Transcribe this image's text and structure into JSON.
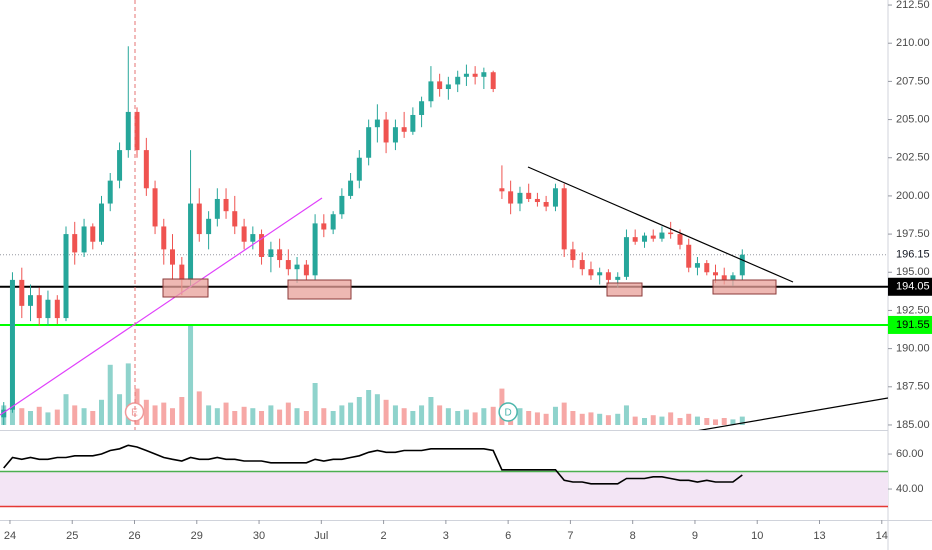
{
  "chart_data": {
    "type": "candlestick",
    "x": [
      -0.1,
      0.04,
      0.19,
      0.33,
      0.47,
      0.61,
      0.76,
      0.9,
      1.04,
      1.19,
      1.33,
      1.47,
      1.61,
      1.76,
      1.9,
      2.04,
      2.19,
      2.33,
      2.47,
      2.61,
      2.76,
      2.9,
      3.04,
      3.19,
      3.33,
      3.47,
      3.61,
      3.76,
      3.9,
      4.04,
      4.19,
      4.33,
      4.47,
      4.61,
      4.76,
      4.9,
      5.04,
      5.19,
      5.33,
      5.47,
      5.61,
      5.76,
      5.9,
      6.04,
      6.19,
      6.33,
      6.47,
      6.61,
      6.76,
      6.9,
      7.04,
      7.19,
      7.33,
      7.47,
      7.61,
      7.76,
      7.9,
      8.04,
      8.19,
      8.33,
      8.47,
      8.61,
      8.76,
      8.9,
      9.04,
      9.19,
      9.33,
      9.47,
      9.61,
      9.76,
      9.9,
      10.04,
      10.19,
      10.33,
      10.47,
      10.61,
      10.76,
      10.9,
      11.04,
      11.19,
      11.33,
      11.47,
      11.61,
      11.76
    ],
    "open": [
      185.5,
      186,
      194.5,
      192.8,
      193.5,
      192,
      193.2,
      192,
      197.5,
      196.3,
      198,
      197,
      199.5,
      201,
      203,
      205.5,
      203,
      200.5,
      198,
      196.5,
      195.5,
      194.5,
      199.5,
      197.5,
      198.5,
      199.8,
      199,
      198,
      197,
      197.5,
      196,
      196.5,
      195.8,
      195.2,
      195.5,
      194.8,
      198.2,
      197.8,
      198.8,
      200,
      201,
      202.5,
      204.5,
      205,
      203.5,
      204.5,
      204.2,
      205.3,
      206.2,
      207.5,
      207,
      207.3,
      207.8,
      208,
      207.8,
      208.1,
      200.5,
      200.3,
      199.5,
      200.2,
      199.8,
      199.6,
      199.3,
      200.5,
      196.5,
      195.8,
      195.2,
      194.8,
      195,
      194.5,
      194.7,
      197.3,
      197,
      197.4,
      197.2,
      197.6,
      197.5,
      196.8,
      195.3,
      195.6,
      195,
      194.8,
      194.5,
      194.8
    ],
    "high": [
      186.5,
      195,
      195.3,
      194.2,
      194,
      193.8,
      193.5,
      198,
      198.3,
      198.5,
      198.2,
      200,
      201.5,
      203.5,
      209.8,
      205.8,
      203.8,
      201,
      198.5,
      197.5,
      196,
      203,
      200.5,
      199,
      200.5,
      200.5,
      200,
      198.5,
      198,
      197.8,
      197,
      197.2,
      196.5,
      196,
      195.8,
      198.8,
      198.8,
      199,
      200.5,
      201.5,
      203,
      205,
      206,
      205.5,
      205,
      205.5,
      205.8,
      206.5,
      208.5,
      208,
      207.8,
      208.2,
      208.6,
      208.5,
      208.4,
      208.2,
      202,
      201,
      200.6,
      200.8,
      200.2,
      200,
      200.8,
      200.8,
      197,
      196.3,
      195.7,
      195.3,
      195.2,
      195,
      197.8,
      197.8,
      197.6,
      197.8,
      198,
      198.3,
      197.8,
      197.2,
      196,
      195.8,
      195.5,
      195.3,
      195,
      196.5
    ],
    "low": [
      185,
      185.8,
      192,
      191.8,
      191.5,
      191.5,
      191.6,
      191.8,
      195.5,
      196,
      196.5,
      196.8,
      199,
      200.5,
      202.5,
      202.5,
      200,
      197.5,
      195.5,
      194.5,
      193.5,
      194,
      197,
      196.5,
      198,
      198.5,
      197.5,
      196.5,
      196.5,
      195.5,
      195,
      195.3,
      194.8,
      194.3,
      194.5,
      194.5,
      197.3,
      197.5,
      198.5,
      199.8,
      200.5,
      202,
      203.5,
      202.8,
      203,
      203.8,
      204,
      204.5,
      205.8,
      206.5,
      206.3,
      206.8,
      207.2,
      207.3,
      207,
      206.8,
      199.8,
      198.8,
      199,
      199.6,
      199.3,
      199,
      199,
      196,
      195.3,
      194.8,
      194.5,
      194.2,
      194.2,
      194,
      194.5,
      196.8,
      196.6,
      197,
      197,
      197.2,
      196.5,
      195,
      194.8,
      194.8,
      194.3,
      194.2,
      194.1,
      194.5
    ],
    "close": [
      186,
      194.5,
      192.8,
      193.5,
      192,
      193.2,
      192,
      197.5,
      196.3,
      198,
      197,
      199.5,
      201,
      203,
      205.5,
      203,
      200.5,
      198,
      196.5,
      195.5,
      194.5,
      199.5,
      197.5,
      198.5,
      199.8,
      199,
      198,
      197,
      197.5,
      196,
      196.5,
      195.8,
      195.2,
      195.5,
      194.8,
      198.2,
      197.8,
      198.8,
      200,
      201,
      202.5,
      204.5,
      205,
      203.5,
      204.5,
      204.2,
      205.3,
      206.2,
      207.5,
      207,
      207.3,
      207.8,
      208,
      207.8,
      208.1,
      207,
      200.3,
      199.5,
      200.2,
      199.8,
      199.6,
      199.3,
      200.5,
      196.5,
      195.8,
      195.2,
      194.8,
      195,
      194.5,
      194.7,
      197.3,
      197,
      197.4,
      197.2,
      197.6,
      197.5,
      196.8,
      195.3,
      195.6,
      195,
      194.8,
      194.5,
      194.8,
      196.15
    ],
    "volume": [
      14,
      18,
      12,
      10,
      13,
      9,
      11,
      22,
      14,
      12,
      10,
      18,
      43,
      22,
      44,
      26,
      18,
      14,
      16,
      12,
      20,
      71,
      24,
      14,
      12,
      16,
      10,
      13,
      12,
      10,
      14,
      11,
      16,
      12,
      10,
      30,
      12,
      10,
      14,
      16,
      20,
      25,
      22,
      18,
      14,
      12,
      10,
      14,
      20,
      14,
      12,
      10,
      11,
      9,
      12,
      13,
      26,
      14,
      12,
      10,
      9,
      8,
      13,
      16,
      10,
      8,
      9,
      8,
      7,
      8,
      14,
      6,
      5,
      7,
      6,
      9,
      5,
      8,
      6,
      5,
      4,
      5,
      4,
      6
    ],
    "up_color": "#26a69a",
    "down_color": "#ef5350",
    "volume_up_color": "#8fd3cc",
    "volume_down_color": "#f6a8a6",
    "volume_lim": [
      0,
      100
    ],
    "xlim": [
      -0.16,
      14.1
    ],
    "xticks": [
      {
        "value": 0,
        "label": "24"
      },
      {
        "value": 1,
        "label": "25"
      },
      {
        "value": 2,
        "label": "26"
      },
      {
        "value": 3,
        "label": "29"
      },
      {
        "value": 4,
        "label": "30"
      },
      {
        "value": 5,
        "label": "Jul"
      },
      {
        "value": 6,
        "label": "2"
      },
      {
        "value": 7,
        "label": "3"
      },
      {
        "value": 8,
        "label": "6"
      },
      {
        "value": 9,
        "label": "7"
      },
      {
        "value": 10,
        "label": "8"
      },
      {
        "value": 11,
        "label": "9"
      },
      {
        "value": 12,
        "label": "10"
      },
      {
        "value": 13,
        "label": "13"
      },
      {
        "value": 14,
        "label": "14"
      }
    ],
    "ylim": [
      184.67,
      212.83
    ],
    "yticks": [
      {
        "value": 212.5,
        "label": "212.50"
      },
      {
        "value": 210,
        "label": "210.00"
      },
      {
        "value": 207.5,
        "label": "207.50"
      },
      {
        "value": 205,
        "label": "205.00"
      },
      {
        "value": 202.5,
        "label": "202.50"
      },
      {
        "value": 200,
        "label": "200.00"
      },
      {
        "value": 197.5,
        "label": "197.50"
      },
      {
        "value": 195,
        "label": "195.00"
      },
      {
        "value": 192.5,
        "label": "192.50"
      },
      {
        "value": 190,
        "label": "190.00"
      },
      {
        "value": 187.5,
        "label": "187.50"
      },
      {
        "value": 185,
        "label": "185.00"
      }
    ],
    "price_lines": [
      {
        "value": 196.15,
        "color": "#9598a1",
        "style": "dotted"
      },
      {
        "value": 194.05,
        "color": "#000000",
        "style": "solid",
        "label_bg": "#000000",
        "label_color": "#ffffff"
      },
      {
        "value": 191.55,
        "color": "#00ff00",
        "style": "solid",
        "label_bg": "#00ff00",
        "label_color": "#000000"
      }
    ],
    "markers": [
      {
        "text": "E",
        "x": 2,
        "color": "#ef9a9a"
      },
      {
        "text": "D",
        "x": 8,
        "color": "#4db6ac"
      }
    ],
    "indicator": {
      "type": "line",
      "color": "#000000",
      "values": [
        52,
        58,
        57,
        58,
        57,
        57,
        58,
        58,
        59,
        59,
        59,
        60,
        62,
        63,
        65,
        64,
        62,
        60,
        58,
        57,
        56,
        58,
        57,
        57,
        58,
        57,
        57,
        56,
        56,
        56,
        55,
        55,
        55,
        55,
        55,
        57,
        56,
        57,
        57,
        58,
        59,
        61,
        62,
        61,
        61,
        62,
        62,
        62,
        63,
        63,
        63,
        63,
        63,
        63,
        63,
        62,
        51,
        51,
        51,
        51,
        51,
        51,
        51,
        45,
        44,
        44,
        43,
        43,
        43,
        43,
        46,
        46,
        46,
        47,
        47,
        46,
        45,
        45,
        44,
        45,
        44,
        44,
        44,
        48
      ],
      "ylim": [
        22.3,
        72.6
      ],
      "yticks": [
        {
          "value": 60,
          "label": "60.00"
        },
        {
          "value": 40,
          "label": "40.00"
        }
      ],
      "levels": [
        {
          "value": 50,
          "color": "#4caf50"
        },
        {
          "value": 30,
          "color": "#e53935"
        }
      ],
      "band_color": "#f3e5f5"
    }
  }
}
